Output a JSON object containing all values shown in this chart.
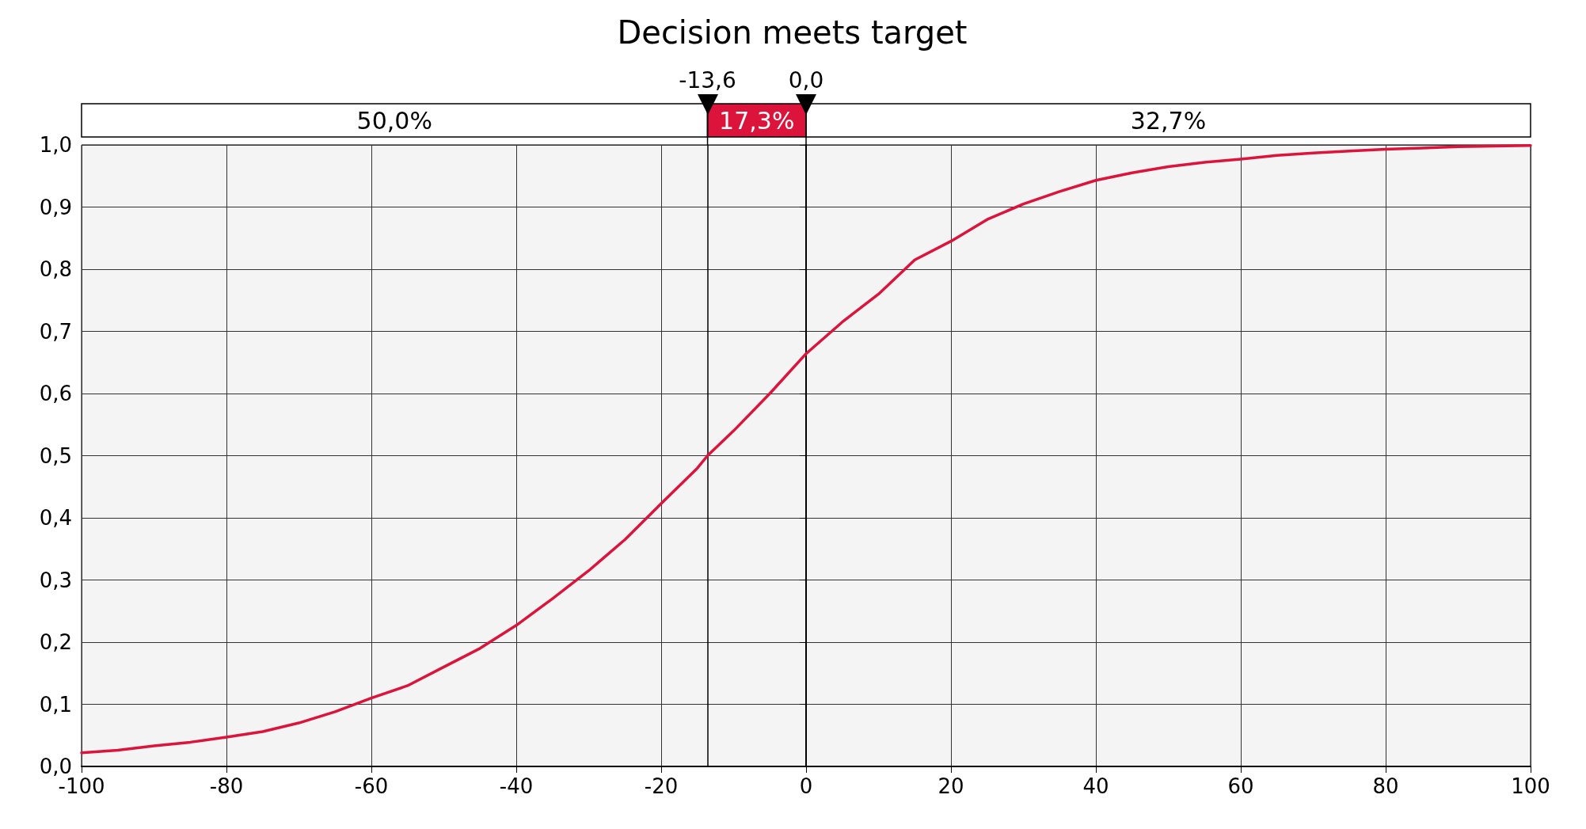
{
  "chart_data": {
    "type": "line",
    "title": "Decision meets target",
    "x": [
      -100,
      -95,
      -90,
      -85,
      -80,
      -75,
      -70,
      -65,
      -60,
      -55,
      -50,
      -45,
      -40,
      -35,
      -30,
      -25,
      -20,
      -15,
      -13.6,
      -10,
      -5,
      0,
      5,
      10,
      15,
      20,
      25,
      30,
      35,
      40,
      45,
      50,
      55,
      60,
      65,
      70,
      75,
      80,
      85,
      90,
      95,
      100
    ],
    "series": [
      {
        "color": "#dc143c",
        "values": [
          0.022,
          0.026,
          0.033,
          0.039,
          0.047,
          0.056,
          0.07,
          0.088,
          0.11,
          0.13,
          0.16,
          0.19,
          0.227,
          0.27,
          0.315,
          0.365,
          0.423,
          0.48,
          0.5,
          0.54,
          0.6,
          0.664,
          0.715,
          0.76,
          0.815,
          0.845,
          0.88,
          0.905,
          0.925,
          0.943,
          0.955,
          0.965,
          0.972,
          0.977,
          0.983,
          0.987,
          0.99,
          0.993,
          0.995,
          0.997,
          0.998,
          0.999
        ]
      }
    ],
    "xlim": [
      -100,
      100
    ],
    "xticks": [
      -100,
      -80,
      -60,
      -40,
      -20,
      0,
      20,
      40,
      60,
      80,
      100
    ],
    "ylim": [
      0,
      1
    ],
    "yticks": [
      {
        "value": 0,
        "label": "0,0"
      },
      {
        "value": 0.1,
        "label": "0,1"
      },
      {
        "value": 0.2,
        "label": "0,2"
      },
      {
        "value": 0.3,
        "label": "0,3"
      },
      {
        "value": 0.4,
        "label": "0,4"
      },
      {
        "value": 0.5,
        "label": "0,5"
      },
      {
        "value": 0.6,
        "label": "0,6"
      },
      {
        "value": 0.7,
        "label": "0,7"
      },
      {
        "value": 0.8,
        "label": "0,8"
      },
      {
        "value": 0.9,
        "label": "0,9"
      },
      {
        "value": 1,
        "label": "1,0"
      }
    ],
    "ref_lines": [
      {
        "axis": "x",
        "value": -13.6,
        "label": "-13,6",
        "color": "#000000"
      },
      {
        "axis": "x",
        "value": 0,
        "label": "0,0",
        "color": "#000000"
      }
    ],
    "annotations": [
      "50,0%",
      "17,3%",
      "32,7%"
    ],
    "grid": true,
    "marker": "none",
    "line_style": "solid"
  }
}
